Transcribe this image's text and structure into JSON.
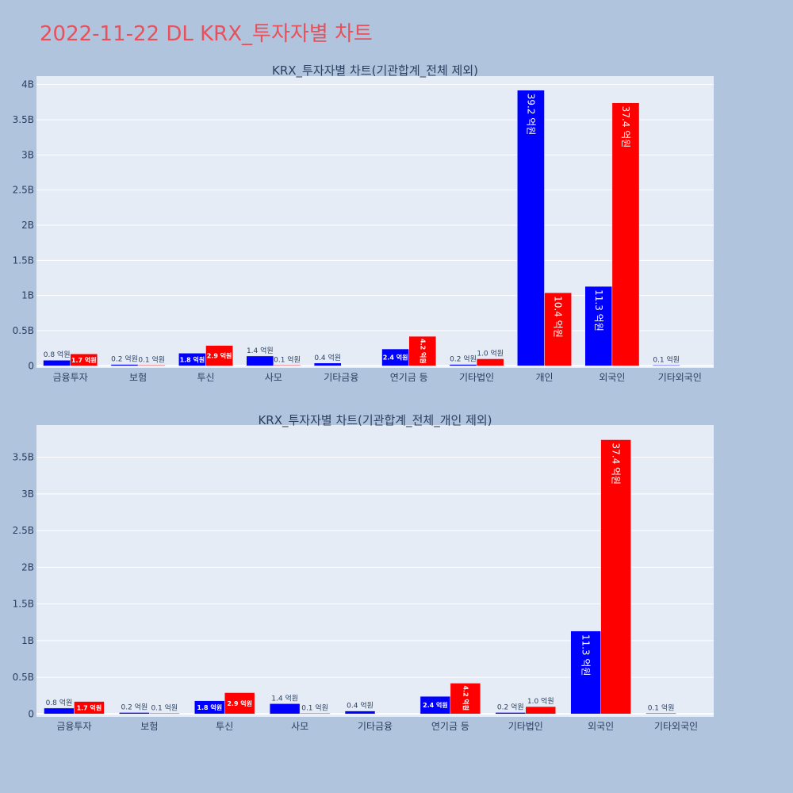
{
  "title": "2022-11-22 DL KRX_투자자별 차트",
  "colors": {
    "buy": "#0000ff",
    "sell": "#ff0000",
    "background": "#b0c4de",
    "plot_background": "#e5ecf6",
    "title": "#e8505b"
  },
  "chart_data": [
    {
      "type": "bar",
      "title": "KRX_투자자별 차트(기관합계_전체 제외)",
      "categories": [
        "금융투자",
        "보험",
        "투신",
        "사모",
        "기타금융",
        "연기금 등",
        "기타법인",
        "개인",
        "외국인",
        "기타외국인"
      ],
      "series": [
        {
          "color": "#0000ff",
          "values": [
            0.08,
            0.02,
            0.18,
            0.14,
            0.04,
            0.24,
            0.02,
            3.92,
            1.13,
            0.01
          ],
          "labels": [
            "0.8 억원",
            "0.2 억원",
            "1.8 억원",
            "1.4 억원",
            "0.4 억원",
            "2.4 억원",
            "0.2 억원",
            "39.2 억원",
            "11.3 억원",
            "0.1 억원"
          ]
        },
        {
          "color": "#ff0000",
          "values": [
            0.17,
            0.01,
            0.29,
            0.01,
            0,
            0.42,
            0.1,
            1.04,
            3.74,
            0
          ],
          "labels": [
            "1.7 억원",
            "0.1 억원",
            "2.9 억원",
            "0.1 억원",
            "",
            "4.2 억원",
            "1.0 억원",
            "10.4 억원",
            "37.4 억원",
            ""
          ]
        }
      ],
      "yticks": [
        0,
        0.5,
        1,
        1.5,
        2,
        2.5,
        3,
        3.5,
        4
      ],
      "ytick_labels": [
        "0",
        "0.5B",
        "1B",
        "1.5B",
        "2B",
        "2.5B",
        "3B",
        "3.5B",
        "4B"
      ],
      "ylim": [
        -0.03,
        4.12
      ],
      "grid": true
    },
    {
      "type": "bar",
      "title": "KRX_투자자별 차트(기관합계_전체_개인 제외)",
      "categories": [
        "금융투자",
        "보험",
        "투신",
        "사모",
        "기타금융",
        "연기금 등",
        "기타법인",
        "외국인",
        "기타외국인"
      ],
      "series": [
        {
          "color": "#0000ff",
          "values": [
            0.08,
            0.02,
            0.18,
            0.14,
            0.04,
            0.24,
            0.02,
            1.13,
            0.01
          ],
          "labels": [
            "0.8 억원",
            "0.2 억원",
            "1.8 억원",
            "1.4 억원",
            "0.4 억원",
            "2.4 억원",
            "0.2 억원",
            "11.3 억원",
            "0.1 억원"
          ]
        },
        {
          "color": "#ff0000",
          "values": [
            0.17,
            0.01,
            0.29,
            0.01,
            0,
            0.42,
            0.1,
            3.74,
            0
          ],
          "labels": [
            "1.7 억원",
            "0.1 억원",
            "2.9 억원",
            "0.1 억원",
            "",
            "4.2 억원",
            "1.0 억원",
            "37.4 억원",
            ""
          ]
        }
      ],
      "yticks": [
        0,
        0.5,
        1,
        1.5,
        2,
        2.5,
        3,
        3.5
      ],
      "ytick_labels": [
        "0",
        "0.5B",
        "1B",
        "1.5B",
        "2B",
        "2.5B",
        "3B",
        "3.5B"
      ],
      "ylim": [
        -0.04,
        3.94
      ],
      "grid": true
    }
  ]
}
